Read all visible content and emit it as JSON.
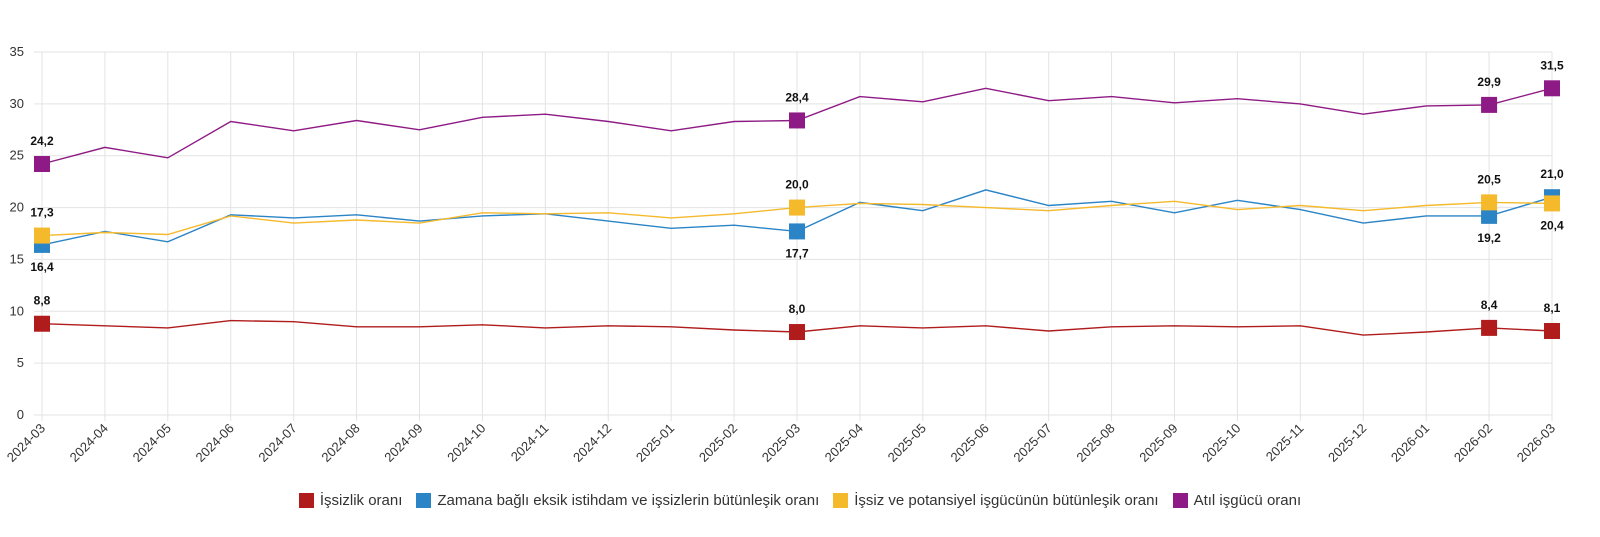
{
  "chart_data": {
    "type": "line",
    "title": "",
    "xlabel": "",
    "ylabel": "",
    "ylim": [
      0,
      35
    ],
    "yticks": [
      "0",
      "5",
      "10",
      "15",
      "20",
      "25",
      "30",
      "35"
    ],
    "grid": true,
    "legend_position": "bottom",
    "categories": [
      "2024-03",
      "2024-04",
      "2024-05",
      "2024-06",
      "2024-07",
      "2024-08",
      "2024-09",
      "2024-10",
      "2024-11",
      "2024-12",
      "2025-01",
      "2025-02",
      "2025-03",
      "2025-04",
      "2025-05",
      "2025-06",
      "2025-07",
      "2025-08",
      "2025-09",
      "2025-10",
      "2025-11",
      "2025-12",
      "2026-01",
      "2026-02",
      "2026-03"
    ],
    "series": [
      {
        "name": "İşsizlik oranı",
        "color": "#b01c1c",
        "values": [
          8.8,
          8.6,
          8.4,
          9.1,
          9.0,
          8.5,
          8.5,
          8.7,
          8.4,
          8.6,
          8.5,
          8.2,
          8.0,
          8.6,
          8.4,
          8.6,
          8.1,
          8.5,
          8.6,
          8.5,
          8.6,
          7.7,
          8.0,
          8.4,
          8.1
        ],
        "markers": [
          {
            "index": 0,
            "label": "8,8",
            "pos": "above"
          },
          {
            "index": 12,
            "label": "8,0",
            "pos": "above"
          },
          {
            "index": 23,
            "label": "8,4",
            "pos": "above"
          },
          {
            "index": 24,
            "label": "8,1",
            "pos": "above"
          }
        ]
      },
      {
        "name": "Zamana bağlı eksik istihdam ve işsizlerin bütünleşik oranı",
        "color": "#2a84c6",
        "values": [
          16.4,
          17.7,
          16.7,
          19.3,
          19.0,
          19.3,
          18.7,
          19.2,
          19.4,
          18.7,
          18.0,
          18.3,
          17.7,
          20.5,
          19.7,
          21.7,
          20.2,
          20.6,
          19.5,
          20.7,
          19.8,
          18.5,
          19.2,
          19.2,
          21.0
        ],
        "markers": [
          {
            "index": 0,
            "label": "16,4",
            "pos": "below"
          },
          {
            "index": 12,
            "label": "17,7",
            "pos": "below"
          },
          {
            "index": 23,
            "label": "19,2",
            "pos": "below"
          },
          {
            "index": 24,
            "label": "21,0",
            "pos": "above"
          }
        ]
      },
      {
        "name": "İşsiz ve potansiyel işgücünün bütünleşik oranı",
        "color": "#f5b92c",
        "values": [
          17.3,
          17.6,
          17.4,
          19.2,
          18.5,
          18.8,
          18.5,
          19.5,
          19.4,
          19.5,
          19.0,
          19.4,
          20.0,
          20.4,
          20.3,
          20.0,
          19.7,
          20.2,
          20.6,
          19.8,
          20.2,
          19.7,
          20.2,
          20.5,
          20.4
        ],
        "markers": [
          {
            "index": 0,
            "label": "17,3",
            "pos": "above"
          },
          {
            "index": 12,
            "label": "20,0",
            "pos": "above"
          },
          {
            "index": 23,
            "label": "20,5",
            "pos": "above"
          },
          {
            "index": 24,
            "label": "20,4",
            "pos": "below"
          }
        ]
      },
      {
        "name": "Atıl işgücü oranı",
        "color": "#8e1b85",
        "values": [
          24.2,
          25.8,
          24.8,
          28.3,
          27.4,
          28.4,
          27.5,
          28.7,
          29.0,
          28.3,
          27.4,
          28.3,
          28.4,
          30.7,
          30.2,
          31.5,
          30.3,
          30.7,
          30.1,
          30.5,
          30.0,
          29.0,
          29.8,
          29.9,
          31.5
        ],
        "markers": [
          {
            "index": 0,
            "label": "24,2",
            "pos": "above"
          },
          {
            "index": 12,
            "label": "28,4",
            "pos": "above"
          },
          {
            "index": 23,
            "label": "29,9",
            "pos": "above"
          },
          {
            "index": 24,
            "label": "31,5",
            "pos": "above"
          }
        ]
      }
    ]
  }
}
